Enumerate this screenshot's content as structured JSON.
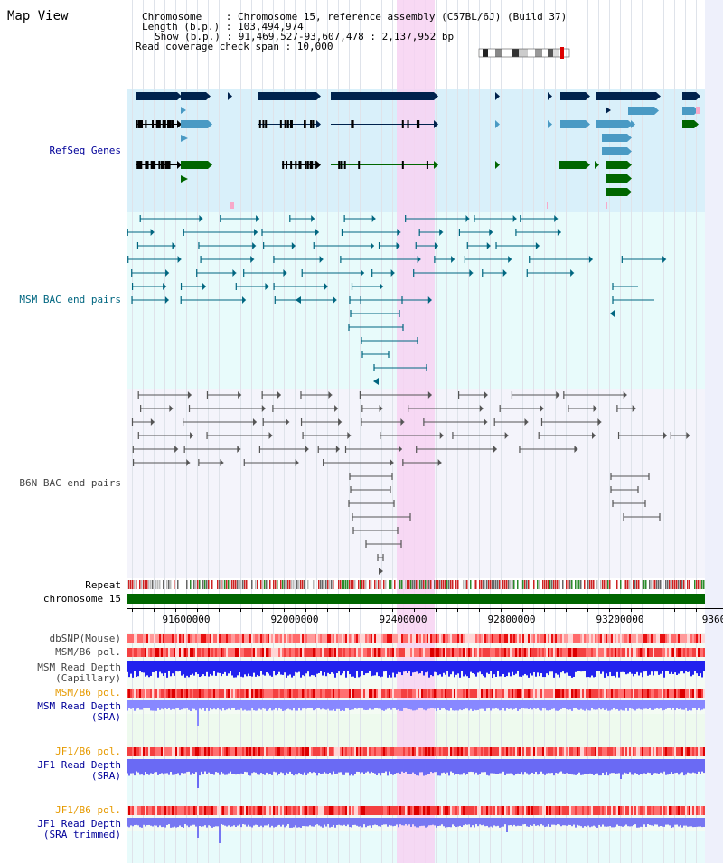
{
  "header": {
    "title": "Map View",
    "lines": [
      "Chromosome    : Chromosome 15, reference assembly (C57BL/6J) (Build 37)",
      "Length (b.p.) : 103,494,974",
      "Show (b.p.) : 91,469,527-93,607,478 : 2,137,952 bp",
      "Read coverage check span : 10,000"
    ]
  },
  "axis": {
    "tick_labels": [
      "91600000",
      "92000000",
      "92400000",
      "92800000",
      "93200000",
      "9360"
    ]
  },
  "tracks": {
    "refseq": "RefSeq Genes",
    "msm_bac": "MSM BAC end pairs",
    "b6n_bac": "B6N BAC end pairs",
    "repeat": "Repeat",
    "chromosome": "chromosome 15",
    "dbsnp": "dbSNP(Mouse)",
    "msm_pol1": "MSM/B6 pol.",
    "msm_depth_cap_1": "MSM Read Depth",
    "msm_depth_cap_2": "(Capillary)",
    "msm_pol2": "MSM/B6 pol.",
    "msm_depth_sra_1": "MSM Read Depth",
    "msm_depth_sra_2": "(SRA)",
    "jf1_pol1": "JF1/B6 pol.",
    "jf1_depth_sra_1": "JF1 Read Depth",
    "jf1_depth_sra_2": "(SRA)",
    "jf1_pol2": "JF1/B6 pol.",
    "jf1_depth_trim_1": "JF1 Read Depth",
    "jf1_depth_trim_2": "(SRA trimmed)"
  },
  "colors": {
    "refseq_bg": "#d9f0fa",
    "msm_bg": "#e8fbfb",
    "b6n_bg": "#f4f4fb",
    "highlight": "#f7d2f2",
    "gene_navy": "#00224d",
    "gene_light": "#4a9ac4",
    "gene_green": "#006600",
    "msm_line": "#006680",
    "b6n_line": "#555555",
    "chrom_green": "#006600",
    "snp_red": "#ee4444",
    "depth_blue": "#2222ee",
    "depth_light": "#8888ff",
    "label_orange": "#e69a00",
    "label_blue": "#000099"
  }
}
